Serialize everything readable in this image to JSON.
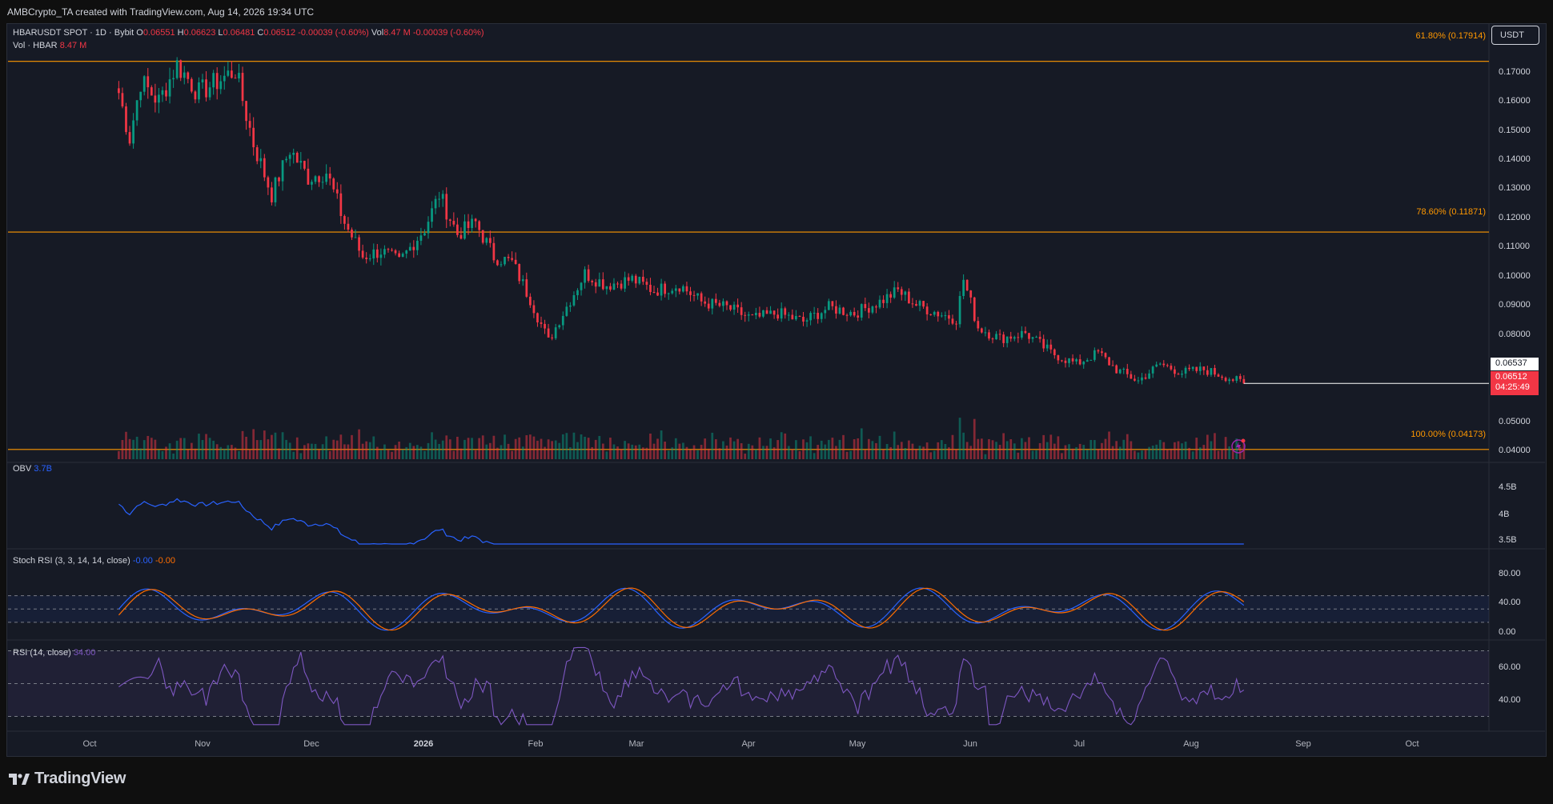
{
  "header": {
    "attribution": "AMBCrypto_TA created with TradingView.com, Aug 14, 2026 19:34 UTC"
  },
  "main_legend": {
    "symbol": "HBARUSDT SPOT · 1D · Bybit",
    "o_label": "O",
    "o_value": "0.06551",
    "h_label": "H",
    "h_value": "0.06623",
    "l_label": "L",
    "l_value": "0.06481",
    "c_label": "C",
    "c_value": "0.06512",
    "change": "-0.00039 (-0.60%)",
    "vol_label": "Vol",
    "vol_value": "8.47 M",
    "vol_change": "-0.00039 (-0.60%)"
  },
  "volume_legend": {
    "label": "Vol · HBAR",
    "value": "8.47 M"
  },
  "obv_legend": {
    "label": "OBV",
    "value": "3.7B"
  },
  "stoch_legend": {
    "label": "Stoch RSI (3, 3, 14, 14, close)",
    "k": "-0.00",
    "d": "-0.00"
  },
  "rsi_legend": {
    "label": "RSI (14, close)",
    "value": "34.00"
  },
  "currency_button": "USDT",
  "price_tags": {
    "reference": "0.06537",
    "last": "0.06512",
    "countdown": "04:25:49"
  },
  "fib_levels": [
    {
      "label": "61.80% (0.17914)",
      "price": 0.17914
    },
    {
      "label": "78.60% (0.11871)",
      "price": 0.11871
    },
    {
      "label": "100.00% (0.04173)",
      "price": 0.04173
    }
  ],
  "price_axis": [
    "0.17000",
    "0.16000",
    "0.15000",
    "0.14000",
    "0.13000",
    "0.12000",
    "0.11000",
    "0.10000",
    "0.09000",
    "0.08000",
    "0.05000",
    "0.04000"
  ],
  "obv_axis": [
    "4.5B",
    "4B",
    "3.5B"
  ],
  "stoch_axis": [
    "80.00",
    "40.00",
    "0.00"
  ],
  "rsi_axis": [
    "60.00",
    "40.00"
  ],
  "time_axis": [
    {
      "label": "Oct",
      "year": false
    },
    {
      "label": "Nov",
      "year": false
    },
    {
      "label": "Dec",
      "year": false
    },
    {
      "label": "2026",
      "year": true
    },
    {
      "label": "Feb",
      "year": false
    },
    {
      "label": "Mar",
      "year": false
    },
    {
      "label": "Apr",
      "year": false
    },
    {
      "label": "May",
      "year": false
    },
    {
      "label": "Jun",
      "year": false
    },
    {
      "label": "Jul",
      "year": false
    },
    {
      "label": "Aug",
      "year": false
    },
    {
      "label": "Sep",
      "year": false
    },
    {
      "label": "Oct",
      "year": false
    }
  ],
  "brand": "TradingView",
  "colors": {
    "up": "#089981",
    "down": "#f23645",
    "fib": "#ff9800",
    "obv": "#2962ff",
    "stoch_d": "#ff6d00",
    "rsi": "#7e57c2",
    "background": "#161a25"
  },
  "chart_data": {
    "type": "candlestick",
    "symbol": "HBARUSDT",
    "interval": "1D",
    "ylim": [
      0.038,
      0.185
    ],
    "anchor_series_note": "approximate daily closes read from chart",
    "price_series": [
      {
        "date": "2025-10-09",
        "close": 0.168
      },
      {
        "date": "2025-10-12",
        "close": 0.152
      },
      {
        "date": "2025-10-15",
        "close": 0.172
      },
      {
        "date": "2025-10-20",
        "close": 0.165
      },
      {
        "date": "2025-10-25",
        "close": 0.178
      },
      {
        "date": "2025-10-31",
        "close": 0.168
      },
      {
        "date": "2025-11-05",
        "close": 0.172
      },
      {
        "date": "2025-11-10",
        "close": 0.176
      },
      {
        "date": "2025-11-15",
        "close": 0.15
      },
      {
        "date": "2025-11-20",
        "close": 0.132
      },
      {
        "date": "2025-11-25",
        "close": 0.148
      },
      {
        "date": "2025-11-30",
        "close": 0.138
      },
      {
        "date": "2025-12-05",
        "close": 0.14
      },
      {
        "date": "2025-12-10",
        "close": 0.122
      },
      {
        "date": "2025-12-15",
        "close": 0.11
      },
      {
        "date": "2025-12-20",
        "close": 0.112
      },
      {
        "date": "2025-12-25",
        "close": 0.108
      },
      {
        "date": "2026-01-01",
        "close": 0.12
      },
      {
        "date": "2026-01-05",
        "close": 0.132
      },
      {
        "date": "2026-01-10",
        "close": 0.118
      },
      {
        "date": "2026-01-15",
        "close": 0.122
      },
      {
        "date": "2026-01-20",
        "close": 0.11
      },
      {
        "date": "2026-01-25",
        "close": 0.108
      },
      {
        "date": "2026-01-30",
        "close": 0.095
      },
      {
        "date": "2026-02-04",
        "close": 0.08
      },
      {
        "date": "2026-02-08",
        "close": 0.09
      },
      {
        "date": "2026-02-14",
        "close": 0.104
      },
      {
        "date": "2026-02-20",
        "close": 0.1
      },
      {
        "date": "2026-02-27",
        "close": 0.102
      },
      {
        "date": "2026-03-05",
        "close": 0.098
      },
      {
        "date": "2026-03-12",
        "close": 0.1
      },
      {
        "date": "2026-03-18",
        "close": 0.094
      },
      {
        "date": "2026-03-25",
        "close": 0.092
      },
      {
        "date": "2026-04-01",
        "close": 0.088
      },
      {
        "date": "2026-04-08",
        "close": 0.09
      },
      {
        "date": "2026-04-15",
        "close": 0.087
      },
      {
        "date": "2026-04-22",
        "close": 0.092
      },
      {
        "date": "2026-04-29",
        "close": 0.09
      },
      {
        "date": "2026-05-06",
        "close": 0.094
      },
      {
        "date": "2026-05-11",
        "close": 0.098
      },
      {
        "date": "2026-05-16",
        "close": 0.093
      },
      {
        "date": "2026-05-22",
        "close": 0.09
      },
      {
        "date": "2026-05-27",
        "close": 0.088
      },
      {
        "date": "2026-05-29",
        "close": 0.102
      },
      {
        "date": "2026-06-02",
        "close": 0.085
      },
      {
        "date": "2026-06-08",
        "close": 0.081
      },
      {
        "date": "2026-06-15",
        "close": 0.083
      },
      {
        "date": "2026-06-22",
        "close": 0.076
      },
      {
        "date": "2026-06-29",
        "close": 0.072
      },
      {
        "date": "2026-07-05",
        "close": 0.076
      },
      {
        "date": "2026-07-10",
        "close": 0.07
      },
      {
        "date": "2026-07-16",
        "close": 0.066
      },
      {
        "date": "2026-07-22",
        "close": 0.072
      },
      {
        "date": "2026-07-28",
        "close": 0.069
      },
      {
        "date": "2026-08-03",
        "close": 0.07
      },
      {
        "date": "2026-08-08",
        "close": 0.068
      },
      {
        "date": "2026-08-14",
        "close": 0.06512
      }
    ]
  }
}
